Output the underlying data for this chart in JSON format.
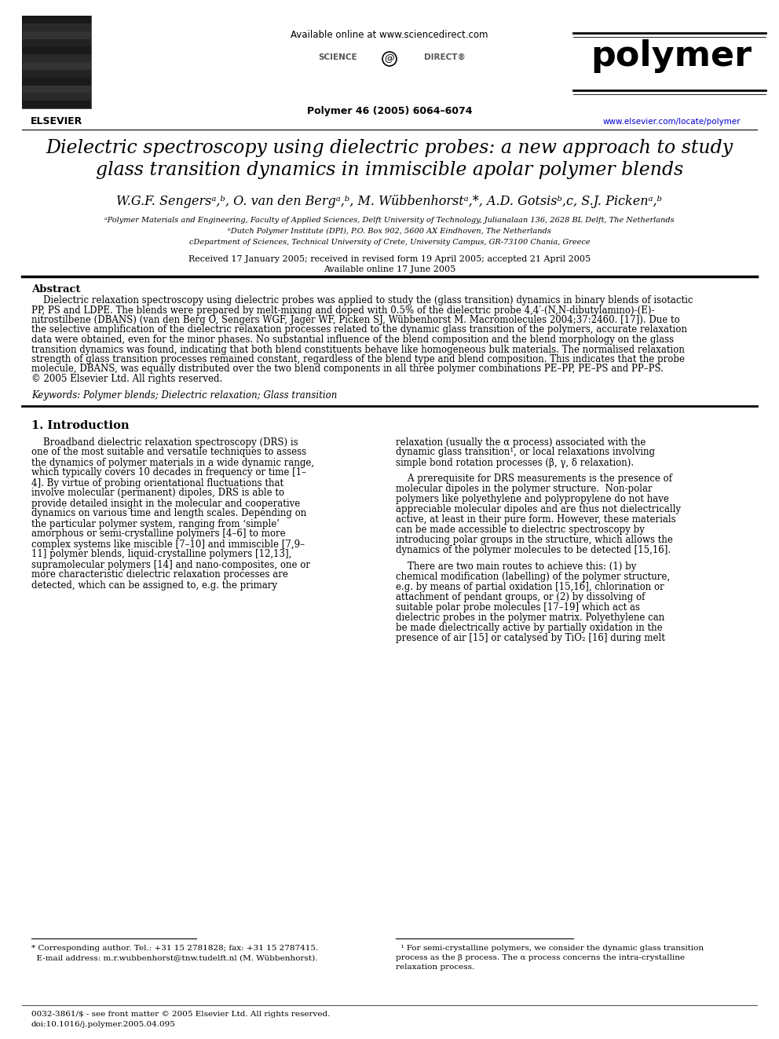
{
  "page_bg": "#ffffff",
  "available_online": "Available online at www.sciencedirect.com",
  "journal_citation": "Polymer 46 (2005) 6064–6074",
  "journal_name": "polymer",
  "journal_url": "www.elsevier.com/locate/polymer",
  "publisher": "ELSEVIER",
  "title_line1": "Dielectric spectroscopy using dielectric probes: a new approach to study",
  "title_line2": "glass transition dynamics in immiscible apolar polymer blends",
  "authors": "W.G.F. Sengersᵃ,ᵇ, O. van den Bergᵃ,ᵇ, M. Wübbenhorstᵃ,*, A.D. Gotsisᵇ,c, S.J. Pickenᵃ,ᵇ",
  "aff1": "ᵃPolymer Materials and Engineering, Faculty of Applied Sciences, Delft University of Technology, Julianalaan 136, 2628 BL Delft, The Netherlands",
  "aff2": "ᵇDutch Polymer Institute (DPI), P.O. Box 902, 5600 AX Eindhoven, The Netherlands",
  "aff3": "cDepartment of Sciences, Technical University of Crete, University Campus, GR-73100 Chania, Greece",
  "received": "Received 17 January 2005; received in revised form 19 April 2005; accepted 21 April 2005",
  "available": "Available online 17 June 2005",
  "abstract_title": "Abstract",
  "abstract_lines": [
    "    Dielectric relaxation spectroscopy using dielectric probes was applied to study the (glass transition) dynamics in binary blends of isotactic",
    "PP, PS and LDPE. The blends were prepared by melt-mixing and doped with 0.5% of the dielectric probe 4,4′-(N,N-dibutylamino)-(E)-",
    "nitrostilbene (DBANS) (van den Berg O, Sengers WGF, Jager WF, Picken SJ, Wübbenhorst M. Macromolecules 2004;37:2460. [17]). Due to",
    "the selective amplification of the dielectric relaxation processes related to the dynamic glass transition of the polymers, accurate relaxation",
    "data were obtained, even for the minor phases. No substantial influence of the blend composition and the blend morphology on the glass",
    "transition dynamics was found, indicating that both blend constituents behave like homogeneous bulk materials. The normalised relaxation",
    "strength of glass transition processes remained constant, regardless of the blend type and blend composition. This indicates that the probe",
    "molecule, DBANS, was equally distributed over the two blend components in all three polymer combinations PE–PP, PE–PS and PP–PS.",
    "© 2005 Elsevier Ltd. All rights reserved."
  ],
  "keywords": "Keywords: Polymer blends; Dielectric relaxation; Glass transition",
  "sec1_title": "1. Introduction",
  "col1_lines": [
    "    Broadband dielectric relaxation spectroscopy (DRS) is",
    "one of the most suitable and versatile techniques to assess",
    "the dynamics of polymer materials in a wide dynamic range,",
    "which typically covers 10 decades in frequency or time [1–",
    "4]. By virtue of probing orientational fluctuations that",
    "involve molecular (permanent) dipoles, DRS is able to",
    "provide detailed insight in the molecular and cooperative",
    "dynamics on various time and length scales. Depending on",
    "the particular polymer system, ranging from ‘simple’",
    "amorphous or semi-crystalline polymers [4–6] to more",
    "complex systems like miscible [7–10] and immiscible [7,9–",
    "11] polymer blends, liquid-crystalline polymers [12,13],",
    "supramolecular polymers [14] and nano-composites, one or",
    "more characteristic dielectric relaxation processes are",
    "detected, which can be assigned to, e.g. the primary"
  ],
  "col2_lines": [
    "relaxation (usually the α process) associated with the",
    "dynamic glass transition¹, or local relaxations involving",
    "simple bond rotation processes (β, γ, δ relaxation).",
    "",
    "    A prerequisite for DRS measurements is the presence of",
    "molecular dipoles in the polymer structure.  Non-polar",
    "polymers like polyethylene and polypropylene do not have",
    "appreciable molecular dipoles and are thus not dielectrically",
    "active, at least in their pure form. However, these materials",
    "can be made accessible to dielectric spectroscopy by",
    "introducing polar groups in the structure, which allows the",
    "dynamics of the polymer molecules to be detected [15,16].",
    "",
    "    There are two main routes to achieve this: (1) by",
    "chemical modification (labelling) of the polymer structure,",
    "e.g. by means of partial oxidation [15,16], chlorination or",
    "attachment of pendant groups, or (2) by dissolving of",
    "suitable polar probe molecules [17–19] which act as",
    "dielectric probes in the polymer matrix. Polyethylene can",
    "be made dielectrically active by partially oxidation in the",
    "presence of air [15] or catalysed by TiO₂ [16] during melt"
  ],
  "fn_left1": "* Corresponding author. Tel.: +31 15 2781828; fax: +31 15 2787415.",
  "fn_left2": "  E-mail address: m.r.wubbenhorst@tnw.tudelft.nl (M. Wübbenhorst).",
  "fn_right1": "  ¹ For semi-crystalline polymers, we consider the dynamic glass transition",
  "fn_right2": "process as the β process. The α process concerns the intra-crystalline",
  "fn_right3": "relaxation process.",
  "copy1": "0032-3861/$ - see front matter © 2005 Elsevier Ltd. All rights reserved.",
  "copy2": "doi:10.1016/j.polymer.2005.04.095"
}
